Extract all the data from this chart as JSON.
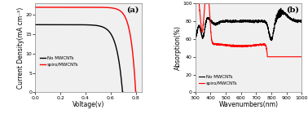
{
  "panel_a": {
    "title": "(a)",
    "xlabel": "Voltage(v)",
    "ylabel": "Current Density(mA cm⁻²)",
    "xlim": [
      0.0,
      0.85
    ],
    "ylim": [
      0,
      23
    ],
    "yticks": [
      0,
      5,
      10,
      15,
      20
    ],
    "xticks": [
      0.0,
      0.2,
      0.4,
      0.6,
      0.8
    ],
    "legend": [
      "No MWCNTs",
      "spiro/MWCNTs"
    ],
    "line_colors": [
      "black",
      "red"
    ],
    "no_mwcnt": {
      "jsc": 17.5,
      "voc": 0.695,
      "n": 1.8
    },
    "spiro_mwcnt": {
      "jsc": 22.0,
      "voc": 0.8,
      "n": 1.5
    }
  },
  "panel_b": {
    "title": "(b)",
    "xlabel": "Wavenumbers(nm)",
    "ylabel": "Absorption(%)",
    "xlim": [
      300,
      1000
    ],
    "ylim": [
      0,
      100
    ],
    "yticks": [
      0,
      20,
      40,
      60,
      80,
      100
    ],
    "xticks": [
      300,
      400,
      500,
      600,
      700,
      800,
      900,
      1000
    ],
    "legend": [
      "No MWCNTs",
      "spiro/MWCNTs"
    ],
    "line_colors": [
      "black",
      "red"
    ]
  },
  "bg_color": "#ffffff",
  "plot_bg": "#f0f0f0",
  "font_size": 5.5
}
